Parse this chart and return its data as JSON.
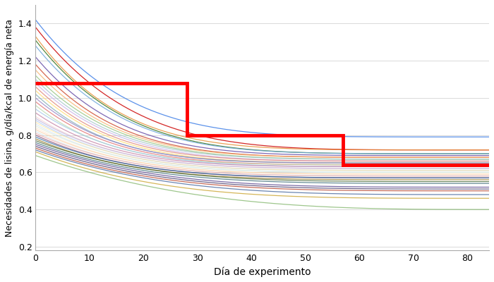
{
  "xlabel": "Día de experimento",
  "ylabel": "Necesidades de lisina, g/día/kcal de energía neta",
  "xlim": [
    0,
    84
  ],
  "ylim": [
    0.18,
    1.5
  ],
  "yticks": [
    0.2,
    0.4,
    0.6,
    0.8,
    1.0,
    1.2,
    1.4
  ],
  "xticks": [
    0,
    10,
    20,
    30,
    40,
    50,
    60,
    70,
    80
  ],
  "red_step_x": [
    0,
    28,
    28,
    57,
    57,
    84
  ],
  "red_step_y": [
    1.08,
    1.08,
    0.8,
    0.8,
    0.64,
    0.64
  ],
  "individual_lines": [
    {
      "start": 1.42,
      "mid": 0.95,
      "end": 0.79,
      "color": "#4a86e8",
      "alpha": 0.9
    },
    {
      "start": 1.38,
      "mid": 0.9,
      "end": 0.72,
      "color": "#cc0000",
      "alpha": 0.85
    },
    {
      "start": 1.33,
      "mid": 0.86,
      "end": 0.72,
      "color": "#e69138",
      "alpha": 0.85
    },
    {
      "start": 1.31,
      "mid": 0.85,
      "end": 0.7,
      "color": "#38761d",
      "alpha": 0.85
    },
    {
      "start": 1.28,
      "mid": 0.84,
      "end": 0.7,
      "color": "#6fa8dc",
      "alpha": 0.85
    },
    {
      "start": 1.22,
      "mid": 0.81,
      "end": 0.69,
      "color": "#674ea7",
      "alpha": 0.85
    },
    {
      "start": 1.18,
      "mid": 0.79,
      "end": 0.68,
      "color": "#cc4125",
      "alpha": 0.8
    },
    {
      "start": 1.15,
      "mid": 0.78,
      "end": 0.68,
      "color": "#f6b26b",
      "alpha": 0.8
    },
    {
      "start": 1.12,
      "mid": 0.77,
      "end": 0.67,
      "color": "#93c47d",
      "alpha": 0.8
    },
    {
      "start": 1.1,
      "mid": 0.76,
      "end": 0.67,
      "color": "#a2c4c9",
      "alpha": 0.8
    },
    {
      "start": 1.08,
      "mid": 0.75,
      "end": 0.66,
      "color": "#c9b0e8",
      "alpha": 0.8
    },
    {
      "start": 1.06,
      "mid": 0.74,
      "end": 0.66,
      "color": "#dd7e6b",
      "alpha": 0.75
    },
    {
      "start": 1.04,
      "mid": 0.73,
      "end": 0.65,
      "color": "#ffd966",
      "alpha": 0.75
    },
    {
      "start": 1.02,
      "mid": 0.72,
      "end": 0.65,
      "color": "#76a5af",
      "alpha": 0.75
    },
    {
      "start": 1.0,
      "mid": 0.72,
      "end": 0.65,
      "color": "#8e7cc3",
      "alpha": 0.75
    },
    {
      "start": 0.98,
      "mid": 0.71,
      "end": 0.64,
      "color": "#e06666",
      "alpha": 0.75
    },
    {
      "start": 0.96,
      "mid": 0.7,
      "end": 0.64,
      "color": "#b6d7a8",
      "alpha": 0.75
    },
    {
      "start": 0.94,
      "mid": 0.7,
      "end": 0.63,
      "color": "#9fc5e8",
      "alpha": 0.75
    },
    {
      "start": 0.92,
      "mid": 0.69,
      "end": 0.63,
      "color": "#c27ba0",
      "alpha": 0.75
    },
    {
      "start": 0.9,
      "mid": 0.68,
      "end": 0.62,
      "color": "#f4cccc",
      "alpha": 0.65
    },
    {
      "start": 0.89,
      "mid": 0.68,
      "end": 0.62,
      "color": "#b4a7d6",
      "alpha": 0.65
    },
    {
      "start": 0.88,
      "mid": 0.67,
      "end": 0.61,
      "color": "#a4c2f4",
      "alpha": 0.65
    },
    {
      "start": 0.87,
      "mid": 0.67,
      "end": 0.61,
      "color": "#ffe599",
      "alpha": 0.65
    },
    {
      "start": 0.86,
      "mid": 0.66,
      "end": 0.6,
      "color": "#cfe2f3",
      "alpha": 0.65
    },
    {
      "start": 0.85,
      "mid": 0.66,
      "end": 0.6,
      "color": "#d9ead3",
      "alpha": 0.65
    },
    {
      "start": 0.84,
      "mid": 0.65,
      "end": 0.59,
      "color": "#fce5cd",
      "alpha": 0.65
    },
    {
      "start": 0.83,
      "mid": 0.65,
      "end": 0.59,
      "color": "#f9cb9c",
      "alpha": 0.65
    },
    {
      "start": 0.82,
      "mid": 0.64,
      "end": 0.58,
      "color": "#d0e0e3",
      "alpha": 0.65
    },
    {
      "start": 0.81,
      "mid": 0.64,
      "end": 0.58,
      "color": "#ea9999",
      "alpha": 0.65
    },
    {
      "start": 0.8,
      "mid": 0.63,
      "end": 0.57,
      "color": "#76305d",
      "alpha": 0.65
    },
    {
      "start": 0.79,
      "mid": 0.63,
      "end": 0.57,
      "color": "#0b5394",
      "alpha": 0.65
    },
    {
      "start": 0.78,
      "mid": 0.62,
      "end": 0.56,
      "color": "#7f6000",
      "alpha": 0.65
    },
    {
      "start": 0.77,
      "mid": 0.62,
      "end": 0.55,
      "color": "#274e13",
      "alpha": 0.65
    },
    {
      "start": 0.76,
      "mid": 0.61,
      "end": 0.54,
      "color": "#134f5c",
      "alpha": 0.65
    },
    {
      "start": 0.75,
      "mid": 0.6,
      "end": 0.52,
      "color": "#351c75",
      "alpha": 0.65
    },
    {
      "start": 0.74,
      "mid": 0.59,
      "end": 0.51,
      "color": "#20124d",
      "alpha": 0.65
    },
    {
      "start": 0.73,
      "mid": 0.58,
      "end": 0.5,
      "color": "#a61c00",
      "alpha": 0.65
    },
    {
      "start": 0.72,
      "mid": 0.57,
      "end": 0.48,
      "color": "#1c4587",
      "alpha": 0.65
    },
    {
      "start": 0.71,
      "mid": 0.55,
      "end": 0.46,
      "color": "#bf9000",
      "alpha": 0.65
    },
    {
      "start": 0.69,
      "mid": 0.53,
      "end": 0.4,
      "color": "#6aa84f",
      "alpha": 0.65
    }
  ]
}
